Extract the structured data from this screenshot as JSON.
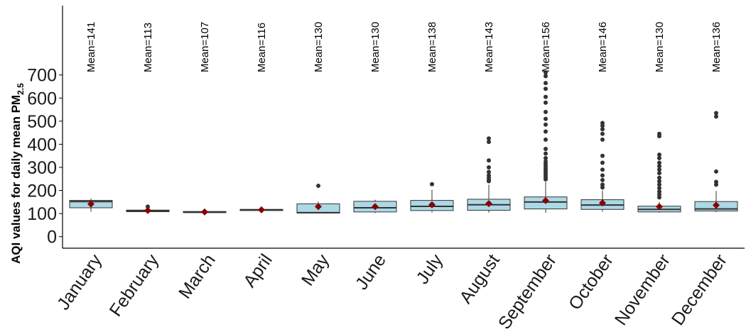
{
  "chart_data": {
    "type": "box",
    "ylabel": {
      "main": "AQI values for daily mean PM",
      "sub": "2.5"
    },
    "xlabel": "",
    "ylim": [
      -50,
      1000
    ],
    "yticks": [
      0,
      100,
      200,
      300,
      400,
      500,
      600,
      700
    ],
    "grid": false,
    "colors": {
      "box_fill": "#add8e6",
      "box_stroke": "#333333",
      "mean_marker": "#8b0000",
      "outlier": "#333333"
    },
    "categories": [
      "January",
      "February",
      "March",
      "April",
      "May",
      "June",
      "July",
      "August",
      "September",
      "October",
      "November",
      "December"
    ],
    "mean_labels": [
      "Mean=141",
      "Mean=113",
      "Mean=107",
      "Mean=116",
      "Mean=130",
      "Mean=130",
      "Mean=138",
      "Mean=143",
      "Mean=156",
      "Mean=146",
      "Mean=130",
      "Mean=136"
    ],
    "means": [
      141,
      113,
      107,
      116,
      130,
      130,
      138,
      143,
      156,
      146,
      130,
      136
    ],
    "boxes": [
      {
        "q1": 125,
        "median": 152,
        "q3": 157,
        "whisker_low": 108,
        "whisker_high": 165,
        "outliers": []
      },
      {
        "q1": 108,
        "median": 111,
        "q3": 115,
        "whisker_low": 105,
        "whisker_high": 118,
        "outliers": [
          130
        ]
      },
      {
        "q1": 104,
        "median": 106,
        "q3": 109,
        "whisker_low": 102,
        "whisker_high": 111,
        "outliers": []
      },
      {
        "q1": 113,
        "median": 116,
        "q3": 118,
        "whisker_low": 111,
        "whisker_high": 120,
        "outliers": []
      },
      {
        "q1": 102,
        "median": 104,
        "q3": 142,
        "whisker_low": 101,
        "whisker_high": 152,
        "outliers": [
          220
        ]
      },
      {
        "q1": 107,
        "median": 125,
        "q3": 153,
        "whisker_low": 102,
        "whisker_high": 160,
        "outliers": []
      },
      {
        "q1": 113,
        "median": 131,
        "q3": 157,
        "whisker_low": 105,
        "whisker_high": 203,
        "outliers": [
          227
        ]
      },
      {
        "q1": 114,
        "median": 138,
        "q3": 162,
        "whisker_low": 104,
        "whisker_high": 225,
        "outliers": [
          240,
          245,
          255,
          265,
          280,
          300,
          330,
          410,
          425
        ]
      },
      {
        "q1": 120,
        "median": 150,
        "q3": 172,
        "whisker_low": 103,
        "whisker_high": 238,
        "outliers": [
          248,
          256,
          264,
          272,
          280,
          288,
          296,
          305,
          315,
          325,
          340,
          360,
          380,
          420,
          455,
          485,
          510,
          540,
          580,
          605,
          640,
          665,
          695,
          710
        ]
      },
      {
        "q1": 118,
        "median": 137,
        "q3": 160,
        "whisker_low": 108,
        "whisker_high": 200,
        "outliers": [
          213,
          225,
          245,
          265,
          290,
          320,
          350,
          420,
          445,
          465,
          480,
          492
        ]
      },
      {
        "q1": 107,
        "median": 118,
        "q3": 132,
        "whisker_low": 103,
        "whisker_high": 150,
        "outliers": [
          170,
          182,
          195,
          210,
          225,
          240,
          255,
          275,
          290,
          305,
          320,
          340,
          355,
          435,
          445
        ]
      },
      {
        "q1": 111,
        "median": 120,
        "q3": 152,
        "whisker_low": 106,
        "whisker_high": 198,
        "outliers": [
          225,
          237,
          282,
          520,
          535
        ]
      }
    ]
  }
}
